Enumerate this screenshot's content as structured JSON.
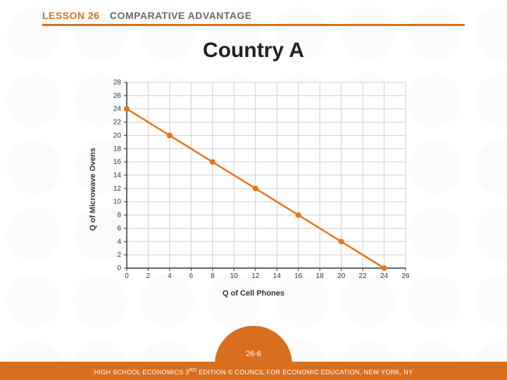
{
  "header": {
    "lesson_prefix": "LESSON 26",
    "topic": "COMPARATIVE ADVANTAGE",
    "rule_color": "#d96f1e"
  },
  "title": "Country A",
  "chart": {
    "type": "line",
    "y_label": "Q of Microwave Ovens",
    "x_label": "Q of Cell Phones",
    "xlim": [
      0,
      26
    ],
    "ylim": [
      0,
      28
    ],
    "xtick_step": 2,
    "ytick_step": 2,
    "grid_color": "#cfcfcf",
    "axis_color": "#333333",
    "background_color": "#ffffff",
    "line_color": "#e8751a",
    "line_width": 2.5,
    "marker_color": "#e8751a",
    "marker_size": 4,
    "tick_fontsize": 10,
    "label_fontsize": 11,
    "points": [
      {
        "x": 0,
        "y": 24
      },
      {
        "x": 4,
        "y": 20
      },
      {
        "x": 8,
        "y": 16
      },
      {
        "x": 12,
        "y": 12
      },
      {
        "x": 16,
        "y": 8
      },
      {
        "x": 20,
        "y": 4
      },
      {
        "x": 24,
        "y": 0
      }
    ]
  },
  "footer": {
    "page_ref": "26-6",
    "credit_pre": "HIGH SCHOOL ECONOMICS 3",
    "credit_sup": "RD",
    "credit_post": " EDITION © COUNCIL FOR ECONOMIC EDUCATION, NEW YORK, NY",
    "bar_color": "#d96f1e",
    "text_color": "#ffffff"
  }
}
